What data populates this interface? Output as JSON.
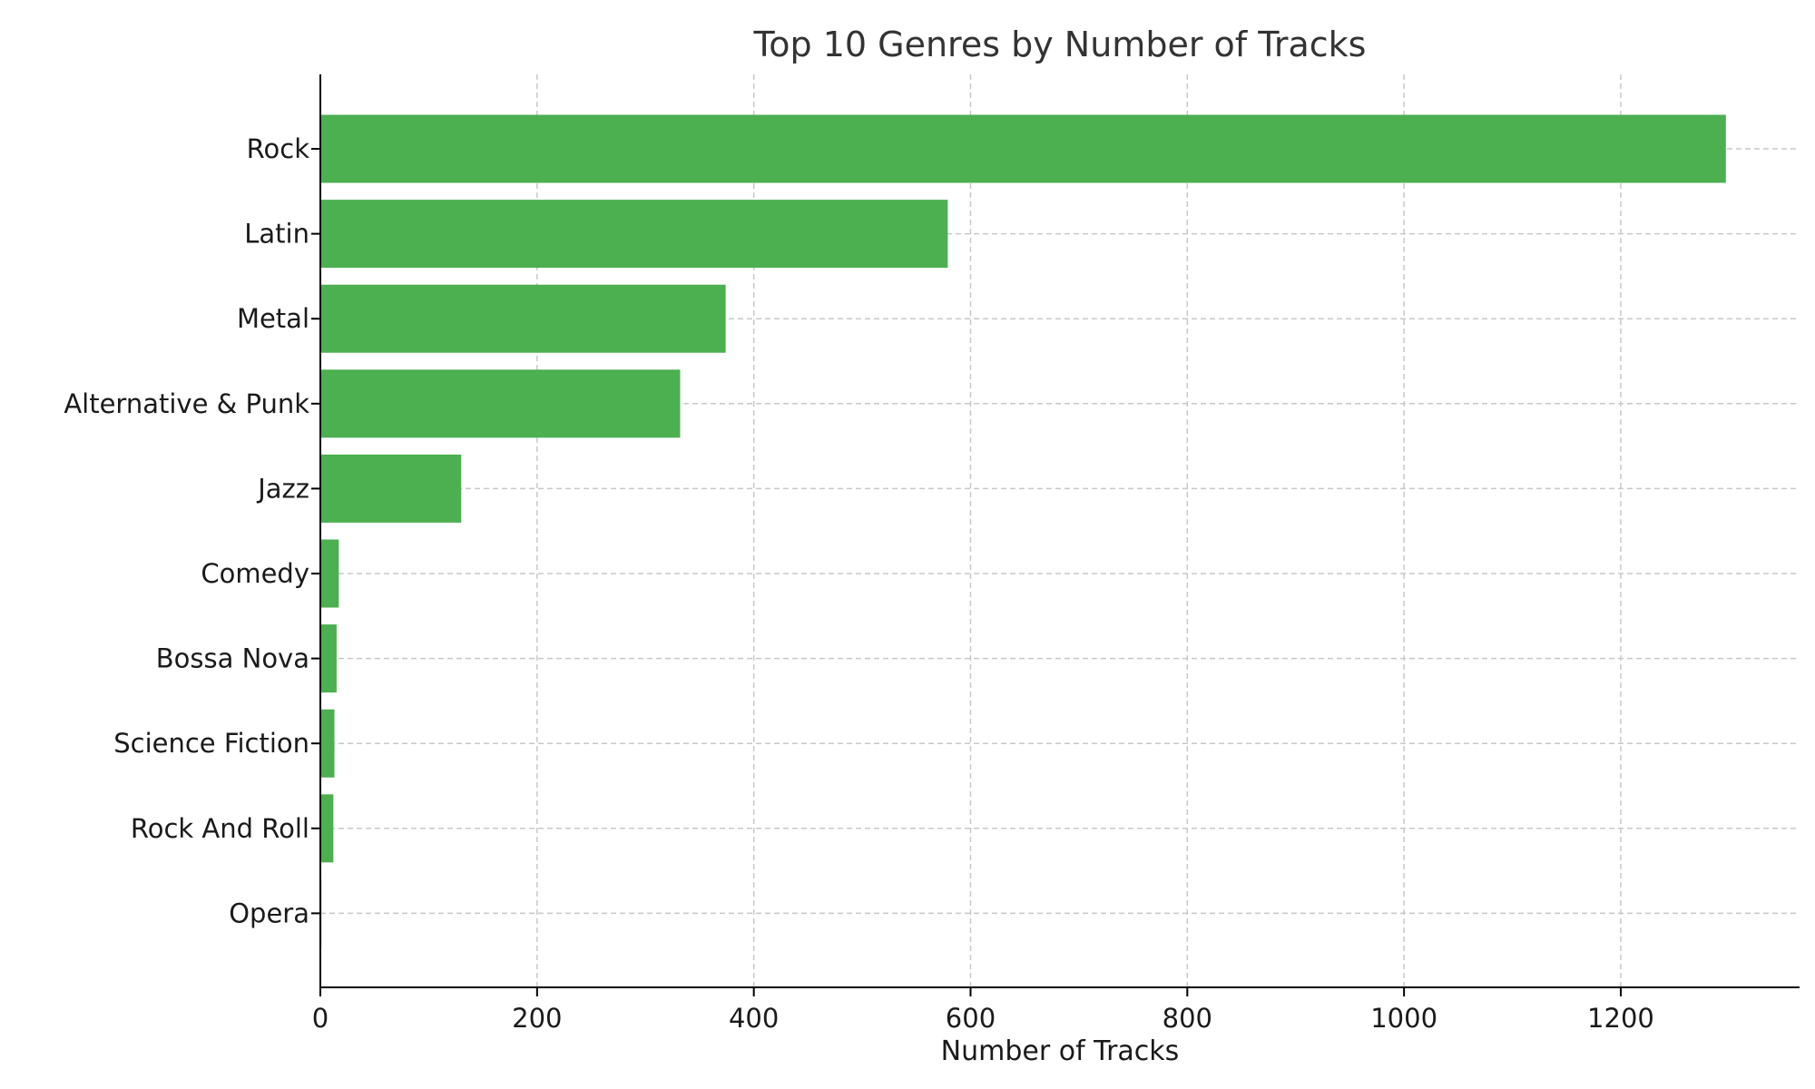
{
  "chart_data": {
    "type": "bar",
    "orientation": "horizontal",
    "title": "Top 10 Genres by Number of Tracks",
    "xlabel": "Number of Tracks",
    "ylabel": "",
    "categories": [
      "Rock",
      "Latin",
      "Metal",
      "Alternative & Punk",
      "Jazz",
      "Comedy",
      "Bossa Nova",
      "Science Fiction",
      "Rock And Roll",
      "Opera"
    ],
    "values": [
      1297,
      579,
      374,
      332,
      130,
      17,
      15,
      13,
      12,
      1
    ],
    "xlim": [
      0,
      1365
    ],
    "xticks": [
      0,
      200,
      400,
      600,
      800,
      1000,
      1200
    ],
    "grid": true,
    "bar_color": "#4caf50",
    "legend": "none"
  }
}
